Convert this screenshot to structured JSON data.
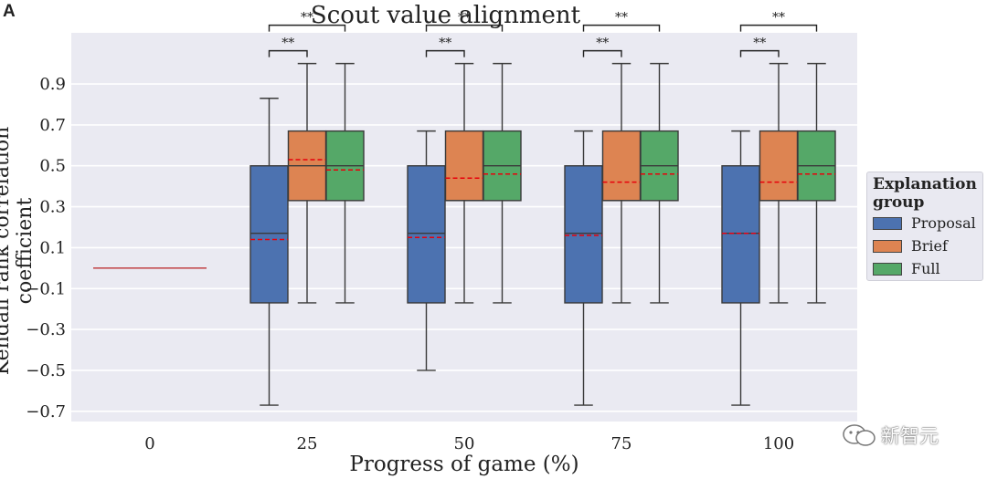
{
  "panel_label": "A",
  "watermark": {
    "text": "新智元"
  },
  "colors": {
    "Proposal": "#4c72b0",
    "Brief": "#dd8452",
    "Full": "#55a868",
    "mean_line": "#e8000b",
    "background": "#eaeaf2",
    "grid": "#ffffff",
    "box_edge": "#3a3a3a"
  },
  "chart_data": {
    "type": "box",
    "title": "Scout value alignment",
    "xlabel": "Progress of game (%)",
    "ylabel": "Kendall rank correlation coefficient",
    "ylim": [
      -0.75,
      1.15
    ],
    "yticks": [
      -0.7,
      -0.5,
      -0.3,
      -0.1,
      0.1,
      0.3,
      0.5,
      0.7,
      0.9
    ],
    "ytick_labels": [
      "−0.7",
      "−0.5",
      "−0.3",
      "−0.1",
      "0.1",
      "0.3",
      "0.5",
      "0.7",
      "0.9"
    ],
    "categories": [
      "0",
      "25",
      "50",
      "75",
      "100"
    ],
    "legend_title": "Explanation group",
    "legend_title_lines": [
      "Explanation",
      "group"
    ],
    "series": [
      {
        "name": "Proposal",
        "boxes": [
          {
            "category": "0",
            "min": 0.0,
            "q1": 0.0,
            "median": 0.0,
            "q3": 0.0,
            "max": 0.0,
            "mean": 0.0
          },
          {
            "category": "25",
            "min": -0.67,
            "q1": -0.17,
            "median": 0.17,
            "q3": 0.5,
            "max": 0.83,
            "mean": 0.14
          },
          {
            "category": "50",
            "min": -0.5,
            "q1": -0.17,
            "median": 0.17,
            "q3": 0.5,
            "max": 0.67,
            "mean": 0.15
          },
          {
            "category": "75",
            "min": -0.67,
            "q1": -0.17,
            "median": 0.17,
            "q3": 0.5,
            "max": 0.67,
            "mean": 0.16
          },
          {
            "category": "100",
            "min": -0.67,
            "q1": -0.17,
            "median": 0.17,
            "q3": 0.5,
            "max": 0.67,
            "mean": 0.17
          }
        ]
      },
      {
        "name": "Brief",
        "boxes": [
          {
            "category": "25",
            "min": -0.17,
            "q1": 0.33,
            "median": 0.5,
            "q3": 0.67,
            "max": 1.0,
            "mean": 0.53
          },
          {
            "category": "50",
            "min": -0.17,
            "q1": 0.33,
            "median": 0.33,
            "q3": 0.67,
            "max": 1.0,
            "mean": 0.44
          },
          {
            "category": "75",
            "min": -0.17,
            "q1": 0.33,
            "median": 0.33,
            "q3": 0.67,
            "max": 1.0,
            "mean": 0.42
          },
          {
            "category": "100",
            "min": -0.17,
            "q1": 0.33,
            "median": 0.33,
            "q3": 0.67,
            "max": 1.0,
            "mean": 0.42
          }
        ]
      },
      {
        "name": "Full",
        "boxes": [
          {
            "category": "25",
            "min": -0.17,
            "q1": 0.33,
            "median": 0.5,
            "q3": 0.67,
            "max": 1.0,
            "mean": 0.48
          },
          {
            "category": "50",
            "min": -0.17,
            "q1": 0.33,
            "median": 0.5,
            "q3": 0.67,
            "max": 1.0,
            "mean": 0.46
          },
          {
            "category": "75",
            "min": -0.17,
            "q1": 0.33,
            "median": 0.5,
            "q3": 0.67,
            "max": 1.0,
            "mean": 0.46
          },
          {
            "category": "100",
            "min": -0.17,
            "q1": 0.33,
            "median": 0.5,
            "q3": 0.67,
            "max": 1.0,
            "mean": 0.46
          }
        ]
      }
    ],
    "annotations": [
      {
        "category": "25",
        "from": "Proposal",
        "to": "Brief",
        "label": "**"
      },
      {
        "category": "25",
        "from": "Proposal",
        "to": "Full",
        "label": "**"
      },
      {
        "category": "50",
        "from": "Proposal",
        "to": "Brief",
        "label": "**"
      },
      {
        "category": "50",
        "from": "Proposal",
        "to": "Full",
        "label": "**"
      },
      {
        "category": "75",
        "from": "Proposal",
        "to": "Brief",
        "label": "**"
      },
      {
        "category": "75",
        "from": "Proposal",
        "to": "Full",
        "label": "**"
      },
      {
        "category": "100",
        "from": "Proposal",
        "to": "Brief",
        "label": "**"
      },
      {
        "category": "100",
        "from": "Proposal",
        "to": "Full",
        "label": "**"
      }
    ]
  }
}
